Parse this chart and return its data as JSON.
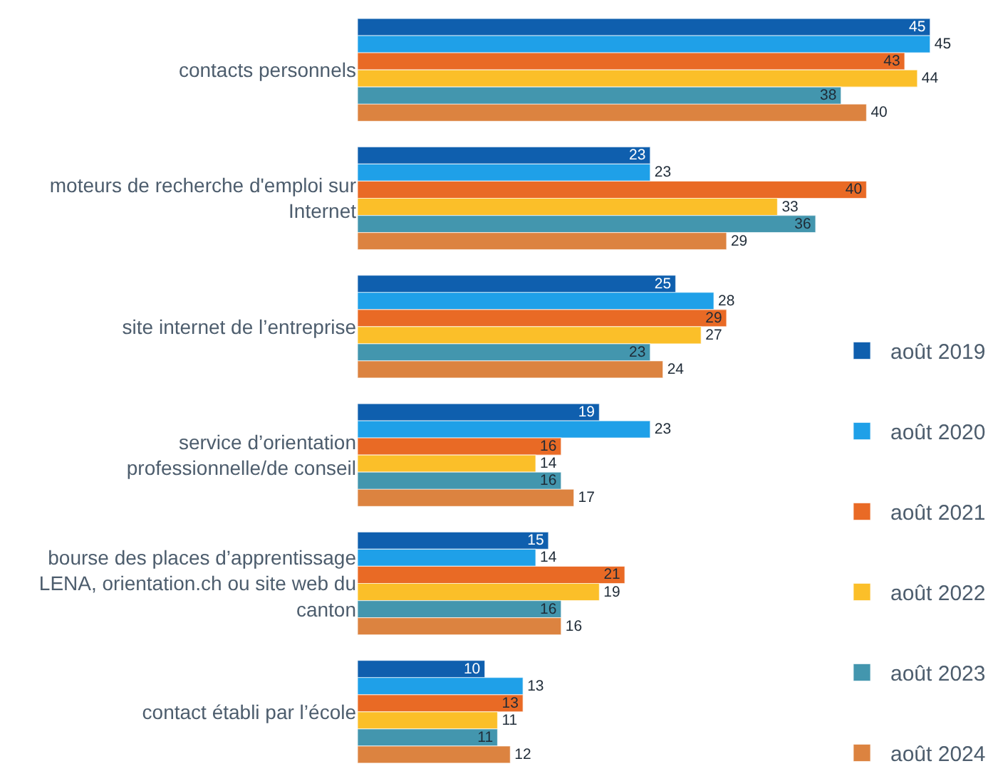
{
  "chart_data": {
    "type": "bar",
    "orientation": "horizontal",
    "categories": [
      "contacts personnels",
      "moteurs de recherche d'emploi sur Internet",
      "site internet de l’entreprise",
      "service d’orientation professionnelle/de conseil",
      "bourse des places d’apprentissage LENA, orientation.ch ou site web du canton",
      "contact établi par l’école"
    ],
    "series": [
      {
        "name": "août 2019",
        "color": "#0f5fae",
        "values": [
          45,
          23,
          25,
          19,
          15,
          10
        ]
      },
      {
        "name": "août 2020",
        "color": "#1fa0e8",
        "values": [
          45,
          23,
          28,
          23,
          14,
          13
        ]
      },
      {
        "name": "août 2021",
        "color": "#e96a25",
        "values": [
          43,
          40,
          29,
          16,
          21,
          13
        ]
      },
      {
        "name": "août 2022",
        "color": "#fbbf29",
        "values": [
          44,
          33,
          27,
          14,
          19,
          11
        ]
      },
      {
        "name": "août 2023",
        "color": "#4396ae",
        "values": [
          38,
          36,
          23,
          16,
          16,
          11
        ]
      },
      {
        "name": "août 2024",
        "color": "#dc8340",
        "values": [
          40,
          29,
          24,
          17,
          16,
          12
        ]
      }
    ],
    "data_labels": true,
    "legend": "bottom right",
    "tick_labels": "y"
  }
}
